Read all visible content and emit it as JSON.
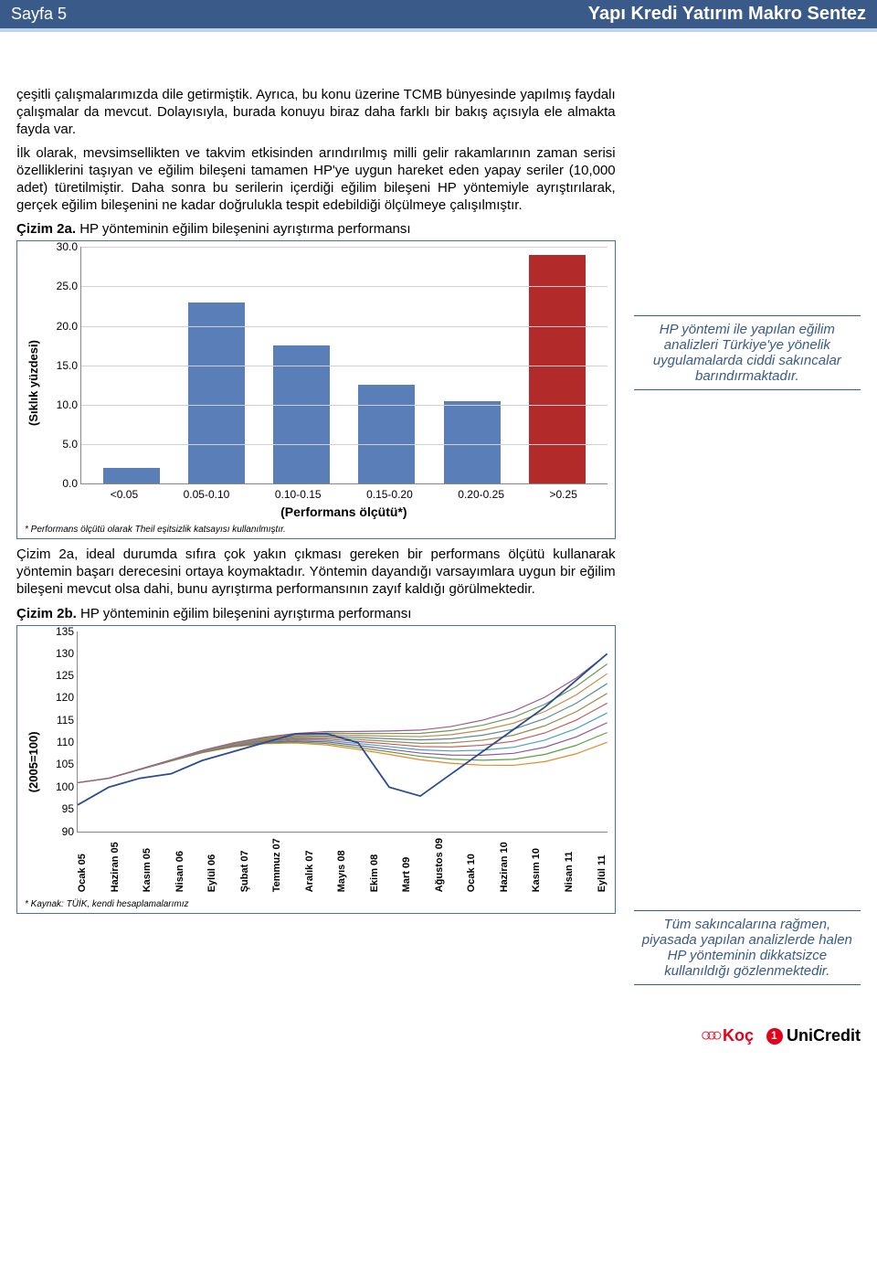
{
  "header": {
    "page_label": "Sayfa 5",
    "title": "Yapı Kredi Yatırım Makro Sentez",
    "bar_bg": "#3a5a8a",
    "accent_bg": "#c2d4ea"
  },
  "paragraphs": {
    "p1": "çeşitli çalışmalarımızda dile getirmiştik. Ayrıca, bu konu üzerine TCMB bünyesinde yapılmış faydalı çalışmalar da mevcut. Dolayısıyla, burada konuyu biraz daha farklı bir bakış açısıyla ele almakta fayda var.",
    "p2": "İlk olarak, mevsimsellikten ve takvim etkisinden arındırılmış milli gelir rakamlarının zaman serisi özelliklerini taşıyan ve eğilim bileşeni tamamen HP'ye uygun hareket eden yapay seriler (10,000 adet) türetilmiştir. Daha sonra bu serilerin içerdiği eğilim bileşeni HP yöntemiyle ayrıştırılarak, gerçek eğilim bileşenini ne kadar doğrulukla tespit edebildiği ölçülmeye çalışılmıştır.",
    "p3": "Çizim 2a, ideal durumda sıfıra çok yakın çıkması gereken bir performans ölçütü kullanarak yöntemin başarı derecesini ortaya koymaktadır. Yöntemin dayandığı varsayımlara uygun bir eğilim bileşeni mevcut olsa dahi, bunu ayrıştırma performansının zayıf kaldığı görülmektedir."
  },
  "chart2a": {
    "title_prefix": "Çizim 2a.",
    "title_text": " HP yönteminin eğilim bileşenini ayrıştırma performansı",
    "type": "bar",
    "ylabel": "(Sıklık yüzdesi)",
    "xlabel": "(Performans ölçütü*)",
    "ymin": 0,
    "ymax": 30,
    "ystep": 5,
    "yticks": [
      "0.0",
      "5.0",
      "10.0",
      "15.0",
      "20.0",
      "25.0",
      "30.0"
    ],
    "categories": [
      "<0.05",
      "0.05-0.10",
      "0.10-0.15",
      "0.15-0.20",
      "0.20-0.25",
      ">0.25"
    ],
    "values": [
      2.0,
      23.0,
      17.5,
      12.5,
      10.5,
      29.0
    ],
    "bar_default_color": "#5a7eb8",
    "bar_highlight_color": "#b22a2a",
    "highlight_index": 5,
    "grid_color": "#d0d0d0",
    "footnote": "* Performans ölçütü olarak Theil eşitsizlik katsayısı kullanılmıştır."
  },
  "chart2b": {
    "title_prefix": "Çizim 2b.",
    "title_text": " HP yönteminin eğilim bileşenini ayrıştırma performansı",
    "type": "line",
    "ylabel": "(2005=100)",
    "ymin": 90,
    "ymax": 135,
    "ystep": 5,
    "yticks": [
      "90",
      "95",
      "100",
      "105",
      "110",
      "115",
      "120",
      "125",
      "130",
      "135"
    ],
    "xticks": [
      "Ocak 05",
      "Haziran 05",
      "Kasım 05",
      "Nisan 06",
      "Eylül 06",
      "Şubat 07",
      "Temmuz 07",
      "Aralık 07",
      "Mayıs 08",
      "Ekim 08",
      "Mart 09",
      "Ağustos 09",
      "Ocak 10",
      "Haziran 10",
      "Kasım 10",
      "Nisan 11",
      "Eylül 11"
    ],
    "main_series": [
      96,
      100,
      102,
      103,
      106,
      108,
      110,
      112,
      112,
      110,
      100,
      98,
      103,
      108,
      113,
      118,
      124,
      130
    ],
    "main_color": "#2a4d8f",
    "trend_colors": [
      "#e58a2a",
      "#5aa042",
      "#8a5aa0",
      "#4aa0c2",
      "#c25a5a",
      "#9a8a4a",
      "#5a8a9a",
      "#c28a4a",
      "#6a9a5a",
      "#a05a8a"
    ],
    "source": "* Kaynak: TÜİK, kendi hesaplamalarımız"
  },
  "sidebar": {
    "note1": "HP yöntemi ile yapılan eğilim analizleri Türkiye'ye yönelik uygulamalarda ciddi sakıncalar barındırmaktadır.",
    "note2": "Tüm sakıncalarına rağmen, piyasada yapılan analizlerde halen HP yönteminin dikkatsizce kullanıldığı gözlenmektedir."
  },
  "logos": {
    "koc": "Koç",
    "unicredit": "UniCredit"
  }
}
